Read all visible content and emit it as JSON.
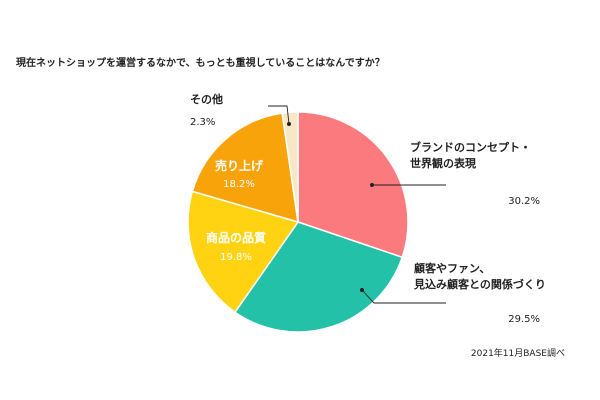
{
  "chart_data": {
    "type": "pie",
    "title": "現在ネットショップを運営するなかで、もっとも重視していることはなんですか？",
    "source": "2021年11月BASE調べ",
    "slices": [
      {
        "label_lines": [
          "ブランドのコンセプト・",
          "世界観の表現"
        ],
        "value": 30.2,
        "value_text": "30.2%",
        "color": "#fa7a7d"
      },
      {
        "label_lines": [
          "顧客やファン、",
          "見込み顧客との関係づくり"
        ],
        "value": 29.5,
        "value_text": "29.5%",
        "color": "#22c1a8"
      },
      {
        "label_lines": [
          "商品の品質"
        ],
        "value": 19.8,
        "value_text": "19.8%",
        "color": "#ffd312"
      },
      {
        "label_lines": [
          "売り上げ"
        ],
        "value": 18.2,
        "value_text": "18.2%",
        "color": "#f9a30a"
      },
      {
        "label_lines": [
          "その他"
        ],
        "value": 2.3,
        "value_text": "2.3%",
        "color": "#f7e7c6"
      }
    ]
  }
}
